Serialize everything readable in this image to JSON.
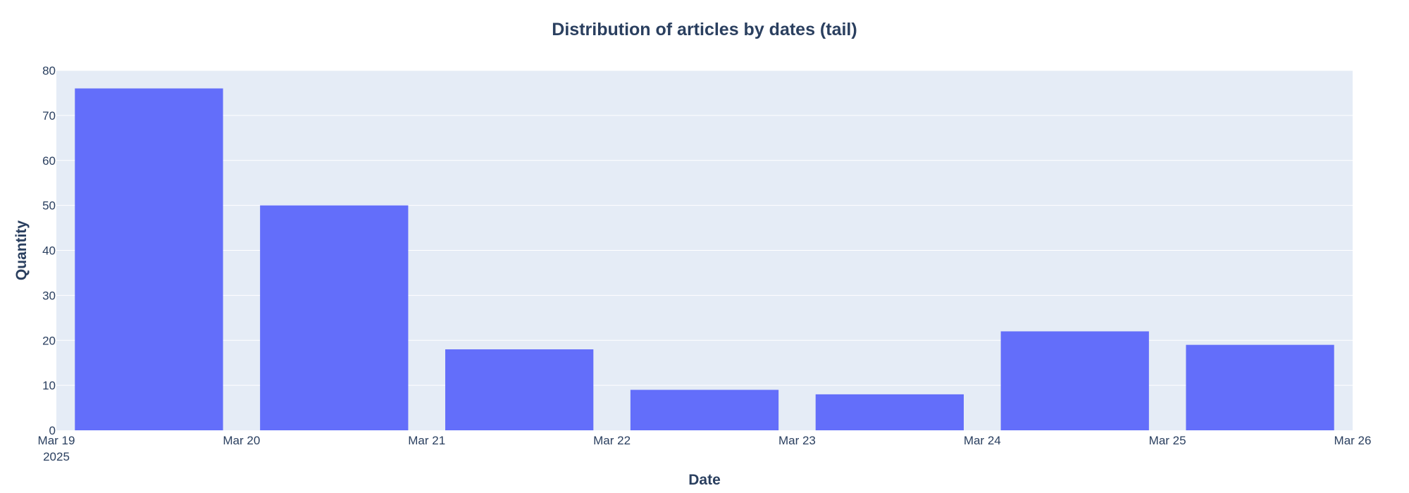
{
  "chart_data": {
    "type": "bar",
    "title": "Distribution of articles by dates (tail)",
    "xlabel": "Date",
    "ylabel": "Quantity",
    "categories": [
      "2025-03-19",
      "2025-03-20",
      "2025-03-21",
      "2025-03-22",
      "2025-03-23",
      "2025-03-24",
      "2025-03-25"
    ],
    "values": [
      76,
      50,
      18,
      9,
      8,
      22,
      19
    ],
    "xlim": [
      "2025-03-19",
      "2025-03-26"
    ],
    "ylim": [
      0,
      80
    ],
    "x_ticks": [
      "Mar 19",
      "Mar 20",
      "Mar 21",
      "Mar 22",
      "Mar 23",
      "Mar 24",
      "Mar 25",
      "Mar 26"
    ],
    "x_tick_year": "2025",
    "y_ticks": [
      "0",
      "10",
      "20",
      "30",
      "40",
      "50",
      "60",
      "70",
      "80"
    ],
    "grid": true,
    "colors": {
      "bar": "#636efa",
      "plot_bg": "#e5ecf6",
      "grid": "#ffffff",
      "text": "#2a3f5f"
    }
  }
}
